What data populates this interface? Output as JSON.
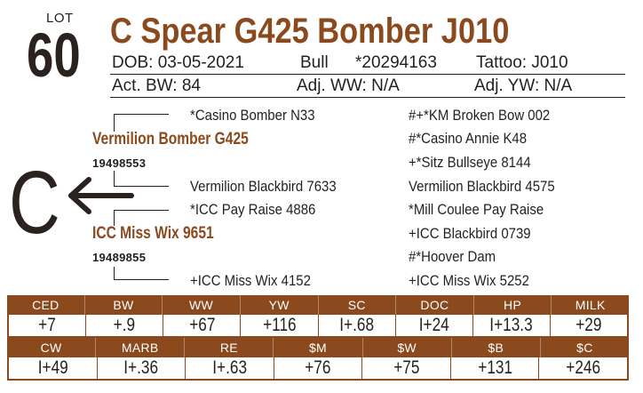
{
  "lot": {
    "label": "LOT",
    "number": "60"
  },
  "title": "C Spear G425 Bomber J010",
  "info": {
    "dob": "DOB:  03-05-2021",
    "sex": "Bull",
    "reg": "*20294163",
    "tattoo": "Tattoo:  J010",
    "act_bw": "Act. BW: 84",
    "adj_ww": "Adj. WW: N/A",
    "adj_yw": "Adj. YW: N/A"
  },
  "sire_letter": "C",
  "pedigree": {
    "sire": {
      "name": "Vermilion Bomber G425",
      "reg": "19498553"
    },
    "dam": {
      "name": "ICC Miss Wix 9651",
      "reg": "19489855"
    },
    "sire_sire": "*Casino Bomber N33",
    "sire_dam": "Vermilion Blackbird 7633",
    "dam_sire": "*ICC Pay Raise 4886",
    "dam_dam": "+ICC Miss Wix 4152",
    "right": [
      "#+*KM Broken Bow 002",
      "#*Casino Annie K48",
      "+*Sitz Bullseye 8144",
      "Vermilion Blackbird 4575",
      "*Mill Coulee Pay Raise",
      "+ICC Blackbird 0739",
      "#*Hoover Dam",
      "+ICC Miss Wix 5252"
    ]
  },
  "epd1": {
    "headers": [
      "CED",
      "BW",
      "WW",
      "YW",
      "SC",
      "DOC",
      "HP",
      "MILK"
    ],
    "values": [
      "+7",
      "+.9",
      "+67",
      "+116",
      "I+.68",
      "I+24",
      "I+13.3",
      "+29"
    ]
  },
  "epd2": {
    "headers": [
      "CW",
      "MARB",
      "RE",
      "$M",
      "$W",
      "$B",
      "$C"
    ],
    "values": [
      "I+49",
      "I+.36",
      "I+.63",
      "+76",
      "+75",
      "+131",
      "+246"
    ]
  },
  "colors": {
    "brand": "#8b4a1e",
    "text": "#231f20"
  }
}
